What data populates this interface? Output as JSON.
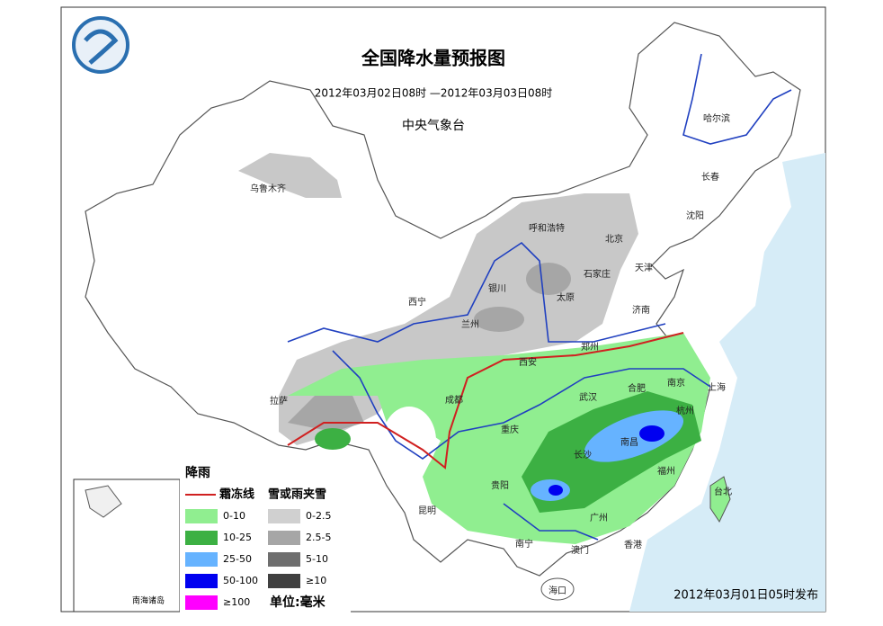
{
  "header": {
    "title": "全国降水量预报图",
    "period": "2012年03月02日08时 —2012年03月03日08时",
    "issuer": "中央气象台"
  },
  "cities": [
    "乌鲁木齐",
    "呼和浩特",
    "北京",
    "哈尔滨",
    "长春",
    "沈阳",
    "天津",
    "石家庄",
    "太原",
    "银川",
    "西宁",
    "兰州",
    "济南",
    "郑州",
    "西安",
    "南京",
    "合肥",
    "上海",
    "武汉",
    "杭州",
    "成都",
    "拉萨",
    "重庆",
    "南昌",
    "长沙",
    "福州",
    "贵阳",
    "台北",
    "昆明",
    "广州",
    "南宁",
    "澳门",
    "香港",
    "海口"
  ],
  "legend": {
    "rain_title": "降雨",
    "freeze_line": "霜冻线",
    "snow_title": "雪或雨夹雪",
    "rain": [
      {
        "label": "0-10",
        "color": "#90ee90"
      },
      {
        "label": "10-25",
        "color": "#3cb043"
      },
      {
        "label": "25-50",
        "color": "#66b3ff"
      },
      {
        "label": "50-100",
        "color": "#0000f0"
      },
      {
        "label": "≥100",
        "color": "#ff00ff"
      }
    ],
    "snow": [
      {
        "label": "0-2.5",
        "color": "#d0d0d0"
      },
      {
        "label": "2.5-5",
        "color": "#a6a6a6"
      },
      {
        "label": "5-10",
        "color": "#6e6e6e"
      },
      {
        "label": "≥10",
        "color": "#404040"
      }
    ]
  },
  "unit": "单位:毫米",
  "inset_label": "南海诸岛",
  "issued": "2012年03月01日05时发布"
}
